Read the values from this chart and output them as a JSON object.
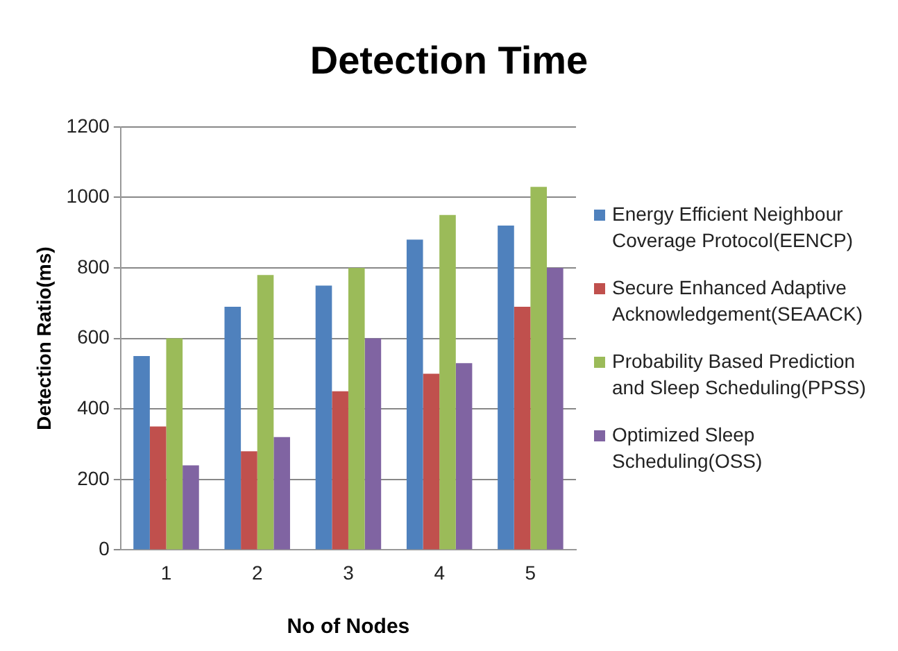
{
  "chart_data": {
    "type": "bar",
    "title": "Detection Time",
    "xlabel": "No of Nodes",
    "ylabel": "Detection Ratio(ms)",
    "categories": [
      "1",
      "2",
      "3",
      "4",
      "5"
    ],
    "series": [
      {
        "name": "Energy Efficient Neighbour Coverage Protocol(EENCP)",
        "color": "#4f81bd",
        "values": [
          550,
          690,
          750,
          880,
          920
        ]
      },
      {
        "name": "Secure Enhanced Adaptive Acknowledgement(SEAACK)",
        "color": "#c0504d",
        "values": [
          350,
          280,
          450,
          500,
          690
        ]
      },
      {
        "name": "Probability Based Prediction and Sleep Scheduling(PPSS)",
        "color": "#9bbb59",
        "values": [
          600,
          780,
          800,
          950,
          1030
        ]
      },
      {
        "name": "Optimized Sleep Scheduling(OSS)",
        "color": "#8064a2",
        "values": [
          240,
          320,
          600,
          530,
          800
        ]
      }
    ],
    "ylim": [
      0,
      1200
    ],
    "yticks": [
      0,
      200,
      400,
      600,
      800,
      1000,
      1200
    ],
    "grid": "y",
    "legend": "right"
  }
}
